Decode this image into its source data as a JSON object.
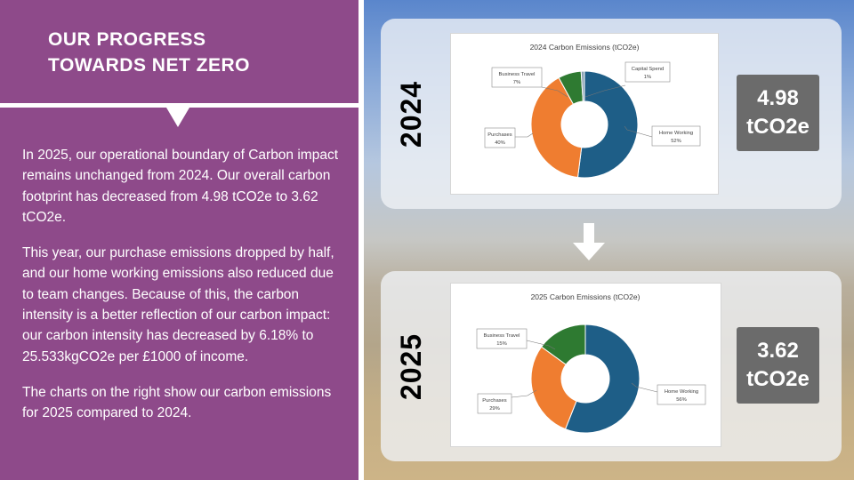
{
  "left_panel": {
    "title_line1": "OUR PROGRESS",
    "title_line2": "TOWARDS NET ZERO",
    "paragraph1": "In 2025, our operational boundary of Carbon impact remains unchanged from 2024. Our overall carbon footprint has decreased from 4.98 tCO2e to 3.62 tCO2e.",
    "paragraph2": "This year, our purchase emissions dropped by half, and our home working emissions also reduced due to team changes. Because of this, the carbon intensity is a better reflection of our carbon impact: our carbon intensity has decreased by 6.18% to 25.533kgCO2e per £1000 of income.",
    "paragraph3": "The charts on the right show our carbon emissions for 2025 compared to 2024."
  },
  "panels": {
    "p2024": {
      "year": "2024",
      "value_line1": "4.98",
      "value_line2": "tCO2e"
    },
    "p2025": {
      "year": "2025",
      "value_line1": "3.62",
      "value_line2": "tCO2e"
    }
  },
  "icons": {
    "arrow": "arrow-down-icon"
  },
  "colors": {
    "home_working": "#1e5e87",
    "purchases": "#ef7d30",
    "business_travel": "#2e7a31",
    "capital_spend": "#8aa1b3",
    "panel_left": "#8e4a8a",
    "value_box": "#6b6b6b"
  },
  "chart_data": [
    {
      "type": "pie",
      "title": "2024 Carbon Emissions (tCO2e)",
      "categories": [
        "Home Working",
        "Purchases",
        "Business Travel",
        "Capital Spend"
      ],
      "values": [
        52,
        40,
        7,
        1
      ],
      "percent_labels": [
        "52%",
        "40%",
        "7%",
        "1%"
      ],
      "colors": [
        "#1e5e87",
        "#ef7d30",
        "#2e7a31",
        "#8aa1b3"
      ]
    },
    {
      "type": "pie",
      "title": "2025 Carbon Emissions (tCO2e)",
      "categories": [
        "Home Working",
        "Purchases",
        "Business Travel"
      ],
      "values": [
        56,
        29,
        15
      ],
      "percent_labels": [
        "56%",
        "29%",
        "15%"
      ],
      "colors": [
        "#1e5e87",
        "#ef7d30",
        "#2e7a31"
      ]
    }
  ]
}
